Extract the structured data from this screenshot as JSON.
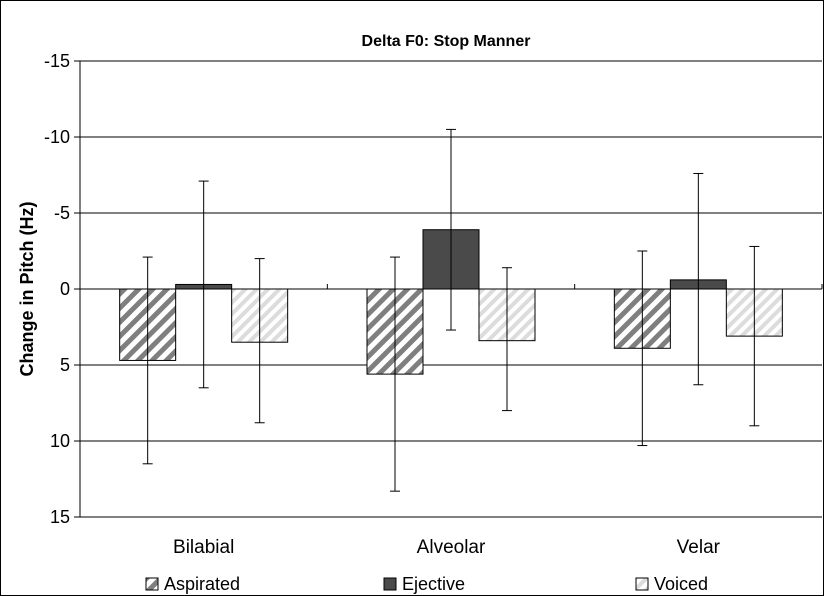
{
  "chart_data": {
    "type": "bar",
    "title": "Delta F0: Stop Manner",
    "ylabel": "Change in Pitch (Hz)",
    "xlabel": "",
    "categories": [
      "Bilabial",
      "Alveolar",
      "Velar"
    ],
    "ylim": [
      15,
      -15
    ],
    "y_inverted": true,
    "yticks": [
      -15,
      -10,
      -5,
      0,
      5,
      10,
      15
    ],
    "ytick_labels": [
      "-15",
      "-10",
      "-5",
      "0",
      "5",
      "10",
      "15"
    ],
    "grid": true,
    "legend_position": "bottom",
    "series": [
      {
        "name": "Aspirated",
        "values": [
          4.7,
          5.6,
          3.9
        ],
        "error_low": [
          -2.1,
          -2.1,
          -2.5
        ],
        "error_high": [
          11.5,
          13.3,
          10.3
        ],
        "color": "#7f7f7f",
        "pattern": "diagonal-dark"
      },
      {
        "name": "Ejective",
        "values": [
          -0.3,
          -3.9,
          -0.6
        ],
        "error_low": [
          -7.1,
          -10.5,
          -7.6
        ],
        "error_high": [
          6.5,
          2.7,
          6.3
        ],
        "color": "#4a4a4a",
        "pattern": "solid"
      },
      {
        "name": "Voiced",
        "values": [
          3.5,
          3.4,
          3.1
        ],
        "error_low": [
          -2.0,
          -1.4,
          -2.8
        ],
        "error_high": [
          8.8,
          8.0,
          9.0
        ],
        "color": "#e0e0e0",
        "pattern": "diagonal-light"
      }
    ]
  }
}
